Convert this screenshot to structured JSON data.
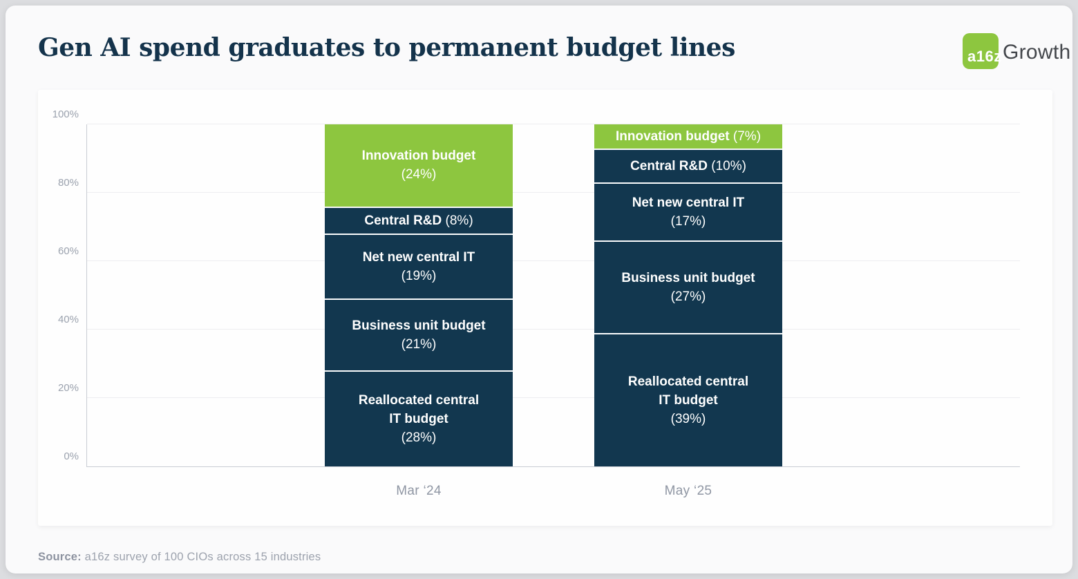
{
  "page": {
    "title": "Gen AI spend graduates to permanent budget lines",
    "source_label": "Source:",
    "source_text": "a16z survey of 100 CIOs across 15 industries"
  },
  "logo": {
    "mark": "a16z",
    "suffix": "Growth"
  },
  "colors": {
    "green": "#8DC63F",
    "navy": "#12374F",
    "title_navy": "#14334B"
  },
  "chart_data": {
    "type": "bar",
    "stacked": true,
    "title": "Gen AI spend graduates to permanent budget lines",
    "categories": [
      "Mar ‘24",
      "May ‘25"
    ],
    "series": [
      {
        "name": "Innovation budget",
        "values": [
          24,
          7
        ],
        "color_key": "green"
      },
      {
        "name": "Central R&D",
        "values": [
          8,
          10
        ],
        "color_key": "navy"
      },
      {
        "name": "Net new central IT",
        "values": [
          19,
          17
        ],
        "color_key": "navy"
      },
      {
        "name": "Business unit budget",
        "values": [
          21,
          27
        ],
        "color_key": "navy"
      },
      {
        "name": "Reallocated central IT budget",
        "values": [
          28,
          39
        ],
        "color_key": "navy"
      }
    ],
    "xlabel": "",
    "ylabel": "",
    "ylim": [
      0,
      100
    ],
    "yticks": [
      "0%",
      "20%",
      "40%",
      "60%",
      "80%",
      "100%"
    ],
    "grid": true,
    "legend": "none"
  },
  "bars": [
    {
      "category": "Mar ‘24",
      "segments": [
        {
          "label_lines": [
            "Innovation budget"
          ],
          "pct": "(24%)",
          "value": 24,
          "color": "green",
          "inline": false
        },
        {
          "label_lines": [
            "Central R&D"
          ],
          "pct": "(8%)",
          "value": 8,
          "color": "navy",
          "inline": true
        },
        {
          "label_lines": [
            "Net new central IT"
          ],
          "pct": "(19%)",
          "value": 19,
          "color": "navy",
          "inline": false
        },
        {
          "label_lines": [
            "Business unit budget"
          ],
          "pct": "(21%)",
          "value": 21,
          "color": "navy",
          "inline": false
        },
        {
          "label_lines": [
            "Reallocated central",
            "IT budget"
          ],
          "pct": "(28%)",
          "value": 28,
          "color": "navy",
          "inline": false
        }
      ]
    },
    {
      "category": "May ‘25",
      "segments": [
        {
          "label_lines": [
            "Innovation budget"
          ],
          "pct": "(7%)",
          "value": 7,
          "color": "green",
          "inline": true
        },
        {
          "label_lines": [
            "Central R&D"
          ],
          "pct": "(10%)",
          "value": 10,
          "color": "navy",
          "inline": true
        },
        {
          "label_lines": [
            "Net new central IT"
          ],
          "pct": "(17%)",
          "value": 17,
          "color": "navy",
          "inline": false
        },
        {
          "label_lines": [
            "Business unit budget"
          ],
          "pct": "(27%)",
          "value": 27,
          "color": "navy",
          "inline": false
        },
        {
          "label_lines": [
            "Reallocated central",
            "IT budget"
          ],
          "pct": "(39%)",
          "value": 39,
          "color": "navy",
          "inline": false
        }
      ]
    }
  ]
}
